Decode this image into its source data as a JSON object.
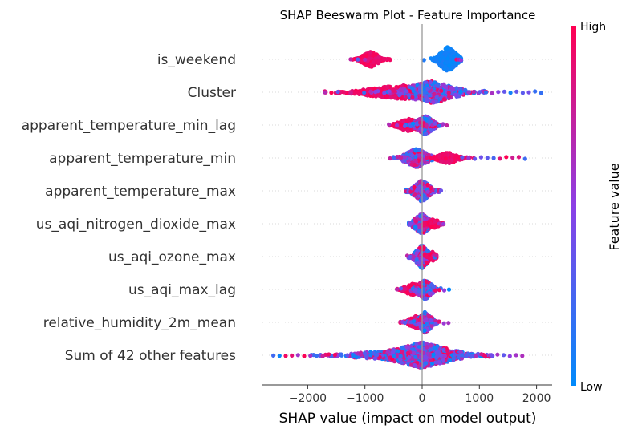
{
  "chart_data": {
    "type": "scatter",
    "title": "SHAP Beeswarm Plot - Feature Importance",
    "xlabel": "SHAP value (impact on model output)",
    "xlim": [
      -2800,
      2300
    ],
    "xticks": [
      {
        "value": -2000,
        "label": "−2000"
      },
      {
        "value": -1000,
        "label": "−1000"
      },
      {
        "value": 0,
        "label": "0"
      },
      {
        "value": 1000,
        "label": "1000"
      },
      {
        "value": 2000,
        "label": "2000"
      }
    ],
    "colorbar": {
      "label": "Feature value",
      "high_label": "High",
      "low_label": "Low",
      "high_color": "#ff0052",
      "low_color": "#008bfb"
    },
    "features": [
      {
        "name": "is_weekend",
        "min": -1250,
        "max": 680,
        "core": [
          -1000,
          600
        ],
        "clusters": [
          {
            "center": -900,
            "spread": 120,
            "width": 10,
            "count": 260,
            "color": "high"
          },
          {
            "center": 450,
            "spread": 120,
            "width": 16,
            "count": 380,
            "color": "low"
          }
        ]
      },
      {
        "name": "Cluster",
        "min": -1700,
        "max": 2080,
        "core": [
          -900,
          900
        ],
        "clusters": [
          {
            "center": -350,
            "spread": 500,
            "width": 9,
            "count": 500,
            "color": "high"
          },
          {
            "center": 150,
            "spread": 350,
            "width": 14,
            "count": 420,
            "color": "mixed"
          }
        ]
      },
      {
        "name": "apparent_temperature_min_lag",
        "min": -580,
        "max": 430,
        "core": [
          -300,
          300
        ],
        "clusters": [
          {
            "center": -230,
            "spread": 150,
            "width": 8,
            "count": 200,
            "color": "high"
          },
          {
            "center": 50,
            "spread": 120,
            "width": 12,
            "count": 260,
            "color": "mixed"
          }
        ]
      },
      {
        "name": "apparent_temperature_min",
        "min": -560,
        "max": 1800,
        "core": [
          -300,
          700
        ],
        "clusters": [
          {
            "center": -100,
            "spread": 160,
            "width": 12,
            "count": 300,
            "color": "mixed"
          },
          {
            "center": 450,
            "spread": 150,
            "width": 7,
            "count": 160,
            "color": "high"
          }
        ]
      },
      {
        "name": "apparent_temperature_max",
        "min": -280,
        "max": 330,
        "core": [
          -200,
          250
        ],
        "clusters": [
          {
            "center": 0,
            "spread": 110,
            "width": 14,
            "count": 360,
            "color": "mixed"
          }
        ]
      },
      {
        "name": "us_aqi_nitrogen_dioxide_max",
        "min": -230,
        "max": 370,
        "core": [
          -200,
          300
        ],
        "clusters": [
          {
            "center": 0,
            "spread": 110,
            "width": 13,
            "count": 340,
            "color": "mixed"
          },
          {
            "center": 200,
            "spread": 90,
            "width": 6,
            "count": 80,
            "color": "high"
          }
        ]
      },
      {
        "name": "us_aqi_ozone_max",
        "min": -260,
        "max": 250,
        "core": [
          -150,
          200
        ],
        "clusters": [
          {
            "center": 0,
            "spread": 90,
            "width": 15,
            "count": 340,
            "color": "mixed"
          },
          {
            "center": 180,
            "spread": 50,
            "width": 6,
            "count": 50,
            "color": "high"
          }
        ]
      },
      {
        "name": "us_aqi_max_lag",
        "min": -440,
        "max": 470,
        "core": [
          -300,
          300
        ],
        "clusters": [
          {
            "center": -150,
            "spread": 120,
            "width": 8,
            "count": 160,
            "color": "high"
          },
          {
            "center": 50,
            "spread": 100,
            "width": 13,
            "count": 260,
            "color": "mixed"
          }
        ]
      },
      {
        "name": "relative_humidity_2m_mean",
        "min": -380,
        "max": 460,
        "core": [
          -300,
          300
        ],
        "clusters": [
          {
            "center": -100,
            "spread": 120,
            "width": 8,
            "count": 180,
            "color": "high"
          },
          {
            "center": 50,
            "spread": 100,
            "width": 13,
            "count": 260,
            "color": "mixed"
          }
        ]
      },
      {
        "name": "Sum of 42 other features",
        "min": -2600,
        "max": 1750,
        "core": [
          -1200,
          1100
        ],
        "clusters": [
          {
            "center": 0,
            "spread": 420,
            "width": 16,
            "count": 900,
            "color": "mixed"
          },
          {
            "center": -500,
            "spread": 600,
            "width": 6,
            "count": 250,
            "color": "mixed"
          }
        ]
      }
    ]
  }
}
